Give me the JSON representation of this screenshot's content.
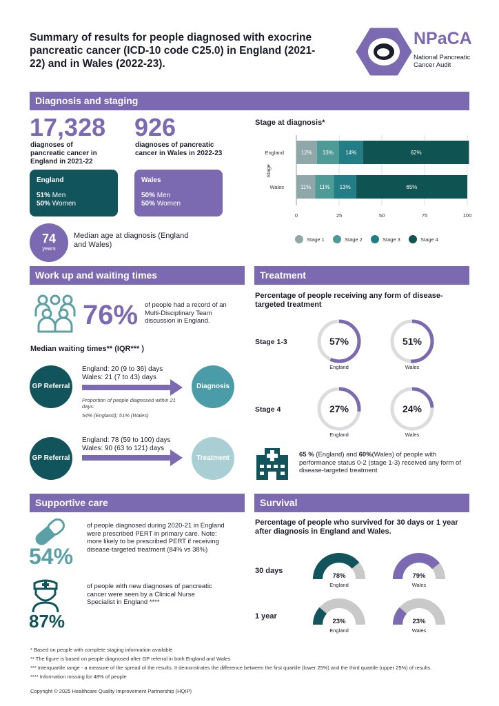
{
  "title": "Summary of results for people diagnosed with exocrine pancreatic cancer (ICD-10 code C25.0) in England (2021-22) and in Wales (2022-23).",
  "logo": {
    "name": "NPaCA",
    "subtitle_1": "National Pancreatic",
    "subtitle_2": "Cancer Audit"
  },
  "diagnosis": {
    "header": "Diagnosis and staging",
    "england_count": "17,328",
    "england_desc": "diagnoses of pancreatic cancer in England in 2021-22",
    "wales_count": "926",
    "wales_desc": "diagnoses of pancreatic cancer in Wales in 2022-23",
    "england_card": {
      "title": "England",
      "men_pct": "51%",
      "men": "Men",
      "women_pct": "50%",
      "women": "Women"
    },
    "wales_card": {
      "title": "Wales",
      "men_pct": "50%",
      "men": "Men",
      "women_pct": "50%",
      "women": "Women"
    },
    "median_age": "74",
    "median_age_unit": "years",
    "median_age_text": "Median age at diagnosis (England and Wales)"
  },
  "chart_data": {
    "type": "bar",
    "orientation": "horizontal-stacked",
    "title": "Stage at diagnosis*",
    "ylabel": "Stage",
    "categories": [
      "England",
      "Wales"
    ],
    "xlim": [
      0,
      100
    ],
    "xticks": [
      "0",
      "25",
      "50",
      "75",
      "100"
    ],
    "series": [
      {
        "name": "Stage 1",
        "values": [
          12,
          11
        ],
        "labels": [
          "12%",
          "11%"
        ],
        "color": "#8fa7a9"
      },
      {
        "name": "Stage 2",
        "values": [
          13,
          11
        ],
        "labels": [
          "13%",
          "11%"
        ],
        "color": "#4e9a97"
      },
      {
        "name": "Stage 3",
        "values": [
          14,
          13
        ],
        "labels": [
          "14%",
          "13%"
        ],
        "color": "#237d87"
      },
      {
        "name": "Stage 4",
        "values": [
          62,
          65
        ],
        "labels": [
          "62%",
          "65%"
        ],
        "color": "#0f5352"
      }
    ],
    "legend": "bottom"
  },
  "workup": {
    "header": "Work up and waiting times",
    "mdt_pct": "76%",
    "mdt_text": "of people had a record of an Multi-Disciplinary Team discussion in England.",
    "waiting_title": "Median waiting times** (IQR*** )",
    "flow1": {
      "from": "GP Referral",
      "to": "Diagnosis",
      "england": "England: 20 (9 to 36) days",
      "wales": "Wales: 21 (7 to 43) days",
      "note_1": "Proportion of people diagnosed within 21 days:",
      "note_2": "54% (England); 51% (Wales)"
    },
    "flow2": {
      "from": "GP Referral",
      "to": "Treatment",
      "england": "England: 78 (59 to 100) days",
      "wales": "Wales: 90 (63 to 121) days"
    }
  },
  "treatment": {
    "header": "Treatment",
    "subtitle": "Percentage of people receiving any form of disease-targeted treatment",
    "rows": [
      {
        "label": "Stage 1-3",
        "england": 57,
        "england_label": "57%",
        "wales": 51,
        "wales_label": "51%"
      },
      {
        "label": "Stage 4",
        "england": 27,
        "england_label": "27%",
        "wales": 24,
        "wales_label": "24%"
      }
    ],
    "england_caption": "England",
    "wales_caption": "Wales",
    "perf_england": "65 %",
    "perf_england_suffix": " (England) and ",
    "perf_wales": "60%",
    "perf_text": "(Wales) of people with performance status 0-2 (stage 1-3) received any form of disease-targeted treatment"
  },
  "supportive": {
    "header": "Supportive care",
    "pert_pct": "54%",
    "pert_text": "of people diagnosed during 2020-21 in England were prescribed PERT in primary care. Note: more likely to be prescribed PERT if receiving disease-targeted treatment (84% vs 38%)",
    "cns_pct": "87%",
    "cns_text": "of people with new diagnoses of pancreatic cancer were seen by a Clinical Nurse Specialist in England ****"
  },
  "survival": {
    "header": "Survival",
    "subtitle": "Percentage of people who survived for 30 days or 1 year after diagnosis in England and Wales.",
    "rows": [
      {
        "label": "30 days",
        "england": 78,
        "england_label": "78%",
        "wales": 79,
        "wales_label": "79%"
      },
      {
        "label": "1 year",
        "england": 23,
        "england_label": "23%",
        "wales": 23,
        "wales_label": "23%"
      }
    ],
    "england_caption": "England",
    "wales_caption": "Wales"
  },
  "footnotes": [
    "* Based on people with complete staging information available",
    "** The figure is based on people diagnosed after GP referral in both England and Wales",
    "*** Interquartile range - a measure of the spread of the results. It demonstrates the difference between the first quartile (lower 25%) and the third quartile (upper 25%) of results.",
    "**** Information missing for 48% of people"
  ],
  "copyright": "Copyright © 2025 Healthcare Quality Improvement Partnership (HQIP)",
  "colors": {
    "purple": "#7b69b1",
    "teal_dark": "#12545b",
    "teal": "#4a9da8",
    "teal_light": "#a9cfd4",
    "grey": "#d0d0d0"
  }
}
